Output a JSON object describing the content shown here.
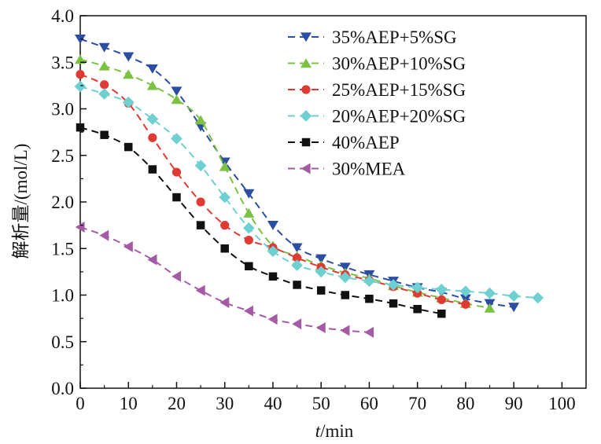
{
  "chart_data": {
    "type": "line",
    "title": "",
    "xlabel_italic": "t",
    "xlabel_rest": "/min",
    "ylabel": "解析量/(mol/L)",
    "xlim": [
      0,
      105
    ],
    "ylim": [
      0.0,
      4.0
    ],
    "x_ticks": [
      0,
      10,
      20,
      30,
      40,
      50,
      60,
      70,
      80,
      90,
      100
    ],
    "y_ticks": [
      0.0,
      0.5,
      1.0,
      1.5,
      2.0,
      2.5,
      3.0,
      3.5,
      4.0
    ],
    "y_tick_labels": [
      "0.0",
      "0.5",
      "1.0",
      "1.5",
      "2.0",
      "2.5",
      "3.0",
      "3.5",
      "4.0"
    ],
    "legend_position": "top-right",
    "series": [
      {
        "name": "35%AEP+5%SG",
        "color": "#2b4ea2",
        "marker": "triangle-down",
        "x": [
          0,
          5,
          10,
          15,
          20,
          25,
          30,
          35,
          40,
          45,
          50,
          55,
          60,
          65,
          70,
          75,
          80,
          85,
          90
        ],
        "y": [
          3.75,
          3.66,
          3.56,
          3.43,
          3.19,
          2.81,
          2.43,
          2.09,
          1.75,
          1.51,
          1.39,
          1.3,
          1.22,
          1.15,
          1.08,
          1.03,
          0.96,
          0.91,
          0.87
        ]
      },
      {
        "name": "30%AEP+10%SG",
        "color": "#7cc242",
        "marker": "triangle-up",
        "x": [
          0,
          5,
          10,
          15,
          20,
          25,
          30,
          35,
          40,
          45,
          50,
          55,
          60,
          65,
          70,
          75,
          80,
          85
        ],
        "y": [
          3.53,
          3.46,
          3.37,
          3.25,
          3.1,
          2.88,
          2.38,
          1.88,
          1.53,
          1.42,
          1.32,
          1.24,
          1.18,
          1.1,
          1.03,
          0.97,
          0.91,
          0.86
        ]
      },
      {
        "name": "25%AEP+15%SG",
        "color": "#e03a34",
        "marker": "circle",
        "x": [
          0,
          5,
          10,
          15,
          20,
          25,
          30,
          35,
          40,
          45,
          50,
          55,
          60,
          65,
          70,
          75,
          80
        ],
        "y": [
          3.37,
          3.26,
          3.06,
          2.69,
          2.32,
          2.0,
          1.75,
          1.59,
          1.51,
          1.4,
          1.3,
          1.22,
          1.16,
          1.09,
          1.02,
          0.95,
          0.9
        ]
      },
      {
        "name": "20%AEP+20%SG",
        "color": "#6fd0d2",
        "marker": "diamond",
        "x": [
          0,
          5,
          10,
          15,
          20,
          25,
          30,
          35,
          40,
          45,
          50,
          55,
          60,
          65,
          70,
          75,
          80,
          85,
          90,
          95
        ],
        "y": [
          3.24,
          3.16,
          3.07,
          2.89,
          2.68,
          2.39,
          2.05,
          1.72,
          1.47,
          1.32,
          1.25,
          1.19,
          1.15,
          1.11,
          1.08,
          1.06,
          1.04,
          1.02,
          0.99,
          0.97
        ]
      },
      {
        "name": "40%AEP",
        "color": "#111111",
        "marker": "square",
        "x": [
          0,
          5,
          10,
          15,
          20,
          25,
          30,
          35,
          40,
          45,
          50,
          55,
          60,
          65,
          70,
          75
        ],
        "y": [
          2.8,
          2.72,
          2.59,
          2.35,
          2.05,
          1.75,
          1.5,
          1.31,
          1.2,
          1.11,
          1.05,
          1.0,
          0.96,
          0.91,
          0.85,
          0.8
        ]
      },
      {
        "name": "30%MEA",
        "color": "#a45aa5",
        "marker": "triangle-left",
        "x": [
          0,
          5,
          10,
          15,
          20,
          25,
          30,
          35,
          40,
          45,
          50,
          55,
          60
        ],
        "y": [
          1.73,
          1.64,
          1.52,
          1.38,
          1.2,
          1.05,
          0.92,
          0.83,
          0.74,
          0.69,
          0.65,
          0.62,
          0.6
        ]
      }
    ]
  }
}
